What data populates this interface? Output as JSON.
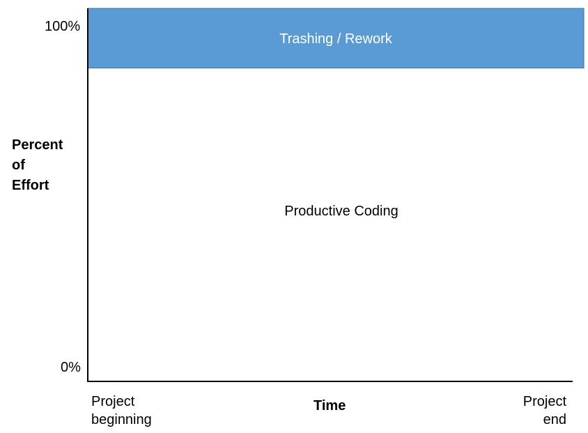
{
  "chart_data": {
    "type": "area",
    "title": "",
    "xlabel": "Time",
    "ylabel_lines": [
      "Percent",
      "of",
      "Effort"
    ],
    "x_tick_labels": {
      "start": [
        "Project",
        "beginning"
      ],
      "end": [
        "Project",
        "end"
      ]
    },
    "y_tick_labels": [
      "100%",
      "0%"
    ],
    "ylim": [
      0,
      100
    ],
    "series": [
      {
        "name": "Productive Coding",
        "values": [
          84,
          84
        ],
        "color": "#ffffff"
      },
      {
        "name": "Trashing / Rework",
        "values": [
          16,
          16
        ],
        "color": "#5b9bd5"
      }
    ],
    "stacked": true,
    "grid": false,
    "legend": "none (labels inside areas)"
  }
}
